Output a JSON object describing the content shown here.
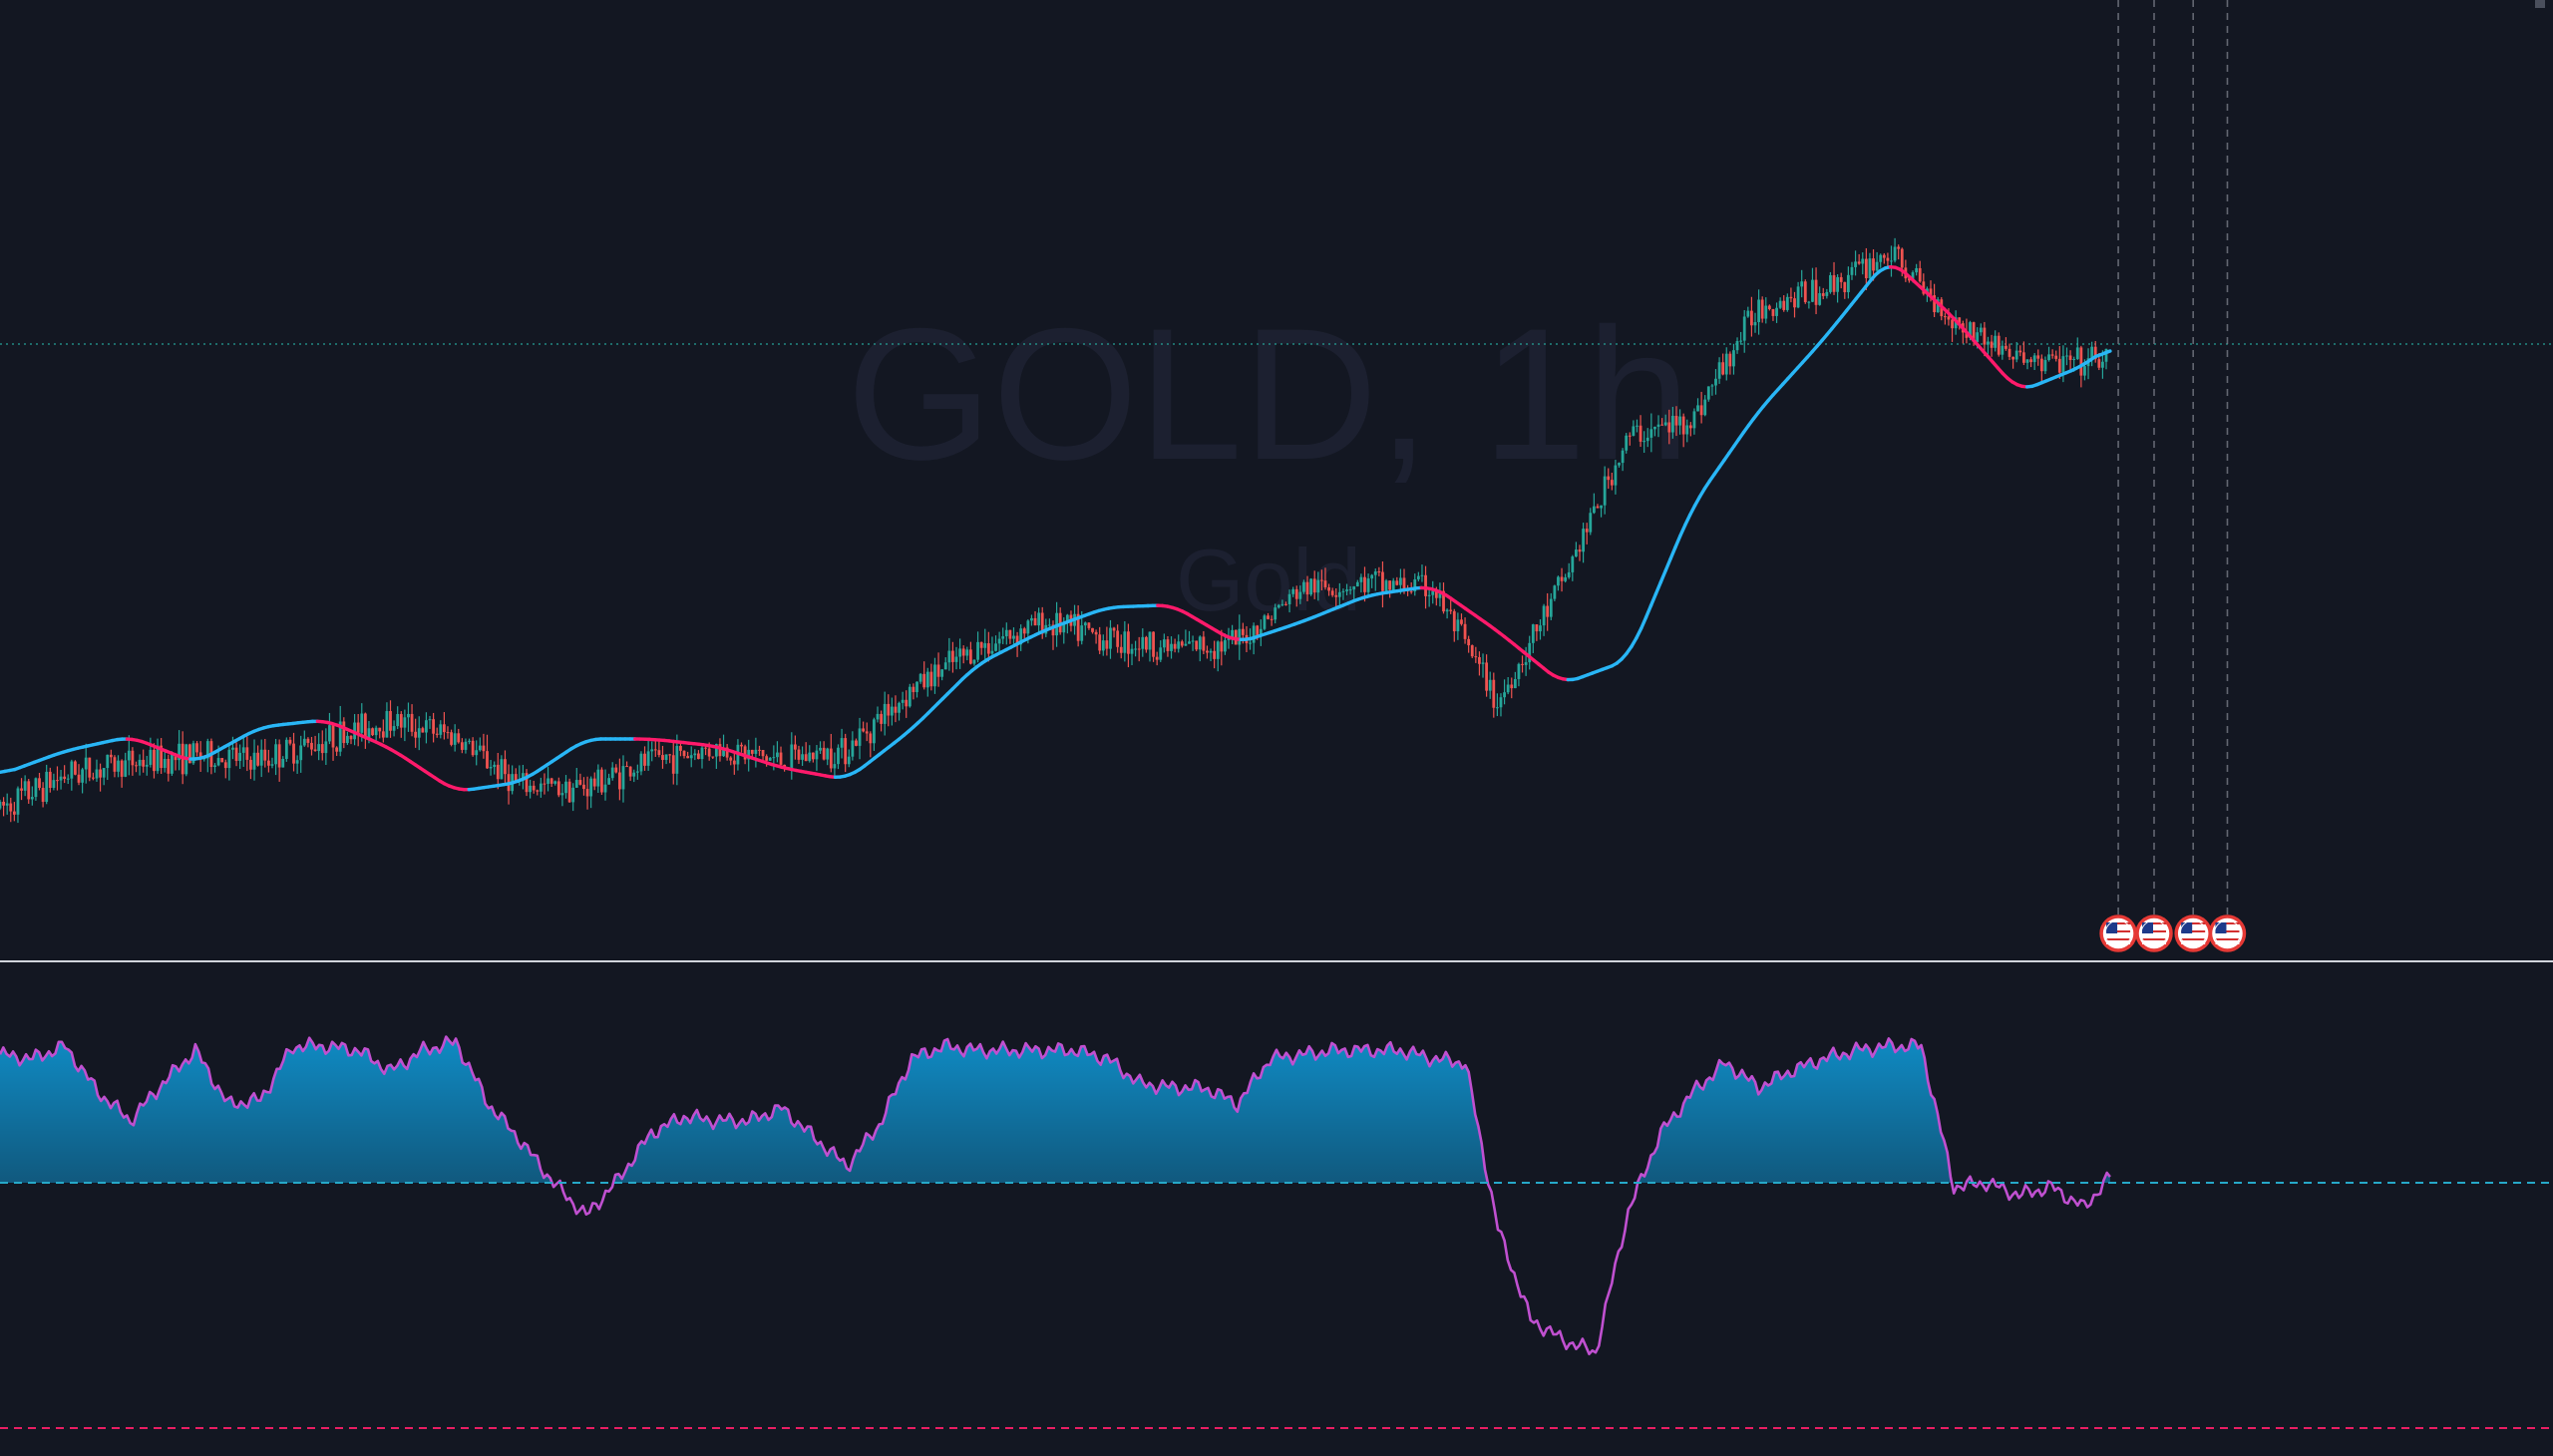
{
  "watermark": {
    "symbol_timeframe": "GOLD, 1h",
    "description": "Gold"
  },
  "colors": {
    "background": "#131722",
    "candle_up": "#26a69a",
    "candle_down": "#ef5350",
    "ma_up": "#29b6f6",
    "ma_down": "#ff1a6b",
    "osc_line": "#c050d0",
    "osc_fill_top": "#0f8bc4",
    "osc_upper_level": "#26a8c8",
    "osc_lower_level": "#e91e63",
    "price_line": "#26a69a",
    "event_line": "#787b86",
    "watermark": "#1c2030"
  },
  "icons": [
    "us-flag-event-icon",
    "us-flag-event-icon",
    "us-flag-event-icon",
    "us-flag-event-icon"
  ],
  "chart_data": [
    {
      "type": "line",
      "role": "price-with-moving-average",
      "x": [
        0,
        40,
        80,
        120,
        160,
        200,
        240,
        280,
        320,
        360,
        400,
        440,
        480,
        520,
        560,
        600,
        640,
        680,
        720,
        760,
        800,
        840,
        880,
        920,
        960,
        1000,
        1040,
        1080,
        1120,
        1160,
        1200,
        1240,
        1280,
        1297
      ],
      "series": [
        {
          "values": [
            1882,
            1892,
            1898,
            1887,
            1902,
            1905,
            1893,
            1875,
            1879,
            1897,
            1897,
            1894,
            1885,
            1880,
            1901,
            1928,
            1942,
            1952,
            1953,
            1937,
            1946,
            1957,
            1961,
            1942,
            1920,
            1930,
            1995,
            2034,
            2064,
            2098,
            2073,
            2042,
            2053,
            2062
          ]
        },
        {
          "values": [
            1868,
            1882,
            1887,
            1890,
            1888,
            1897,
            1905,
            1898,
            1877,
            1877,
            1888,
            1893,
            1888,
            1893,
            1918,
            1935,
            1946,
            1939,
            1935,
            1937,
            1960,
            1962,
            1960,
            1912,
            1963,
            2023,
            2031,
            2078,
            2085,
            2100,
            2072,
            2056,
            2053,
            2058
          ]
        }
      ]
    },
    {
      "type": "area",
      "role": "oscillator",
      "x": [
        0,
        20,
        40,
        60,
        80,
        100,
        120,
        140,
        160,
        180,
        200,
        220,
        240,
        260,
        280,
        300,
        320,
        340,
        360,
        380,
        400,
        420,
        440,
        460,
        480,
        500,
        520,
        540,
        560,
        580,
        600,
        620,
        640,
        660,
        680,
        700,
        720,
        740,
        760,
        780,
        800,
        820,
        840,
        860,
        880,
        900,
        920,
        940,
        960,
        980,
        1000,
        1020,
        1040,
        1060,
        1080,
        1100,
        1120,
        1140,
        1160,
        1180,
        1200,
        1220,
        1240,
        1260,
        1280,
        1297
      ],
      "values": [
        72,
        71,
        74,
        63,
        56,
        65,
        73,
        60,
        61,
        74,
        74,
        73,
        68,
        73,
        75,
        60,
        51,
        41,
        33,
        42,
        53,
        57,
        56,
        56,
        59,
        52,
        45,
        55,
        71,
        74,
        73,
        73,
        73,
        73,
        71,
        65,
        64,
        64,
        60,
        71,
        72,
        73,
        73,
        73,
        71,
        70,
        30,
        8,
        3,
        0,
        34,
        53,
        63,
        70,
        64,
        68,
        71,
        73,
        74,
        74,
        40,
        41,
        38,
        40,
        35,
        43
      ],
      "upper_level": 80,
      "lower_level": 41
    }
  ]
}
